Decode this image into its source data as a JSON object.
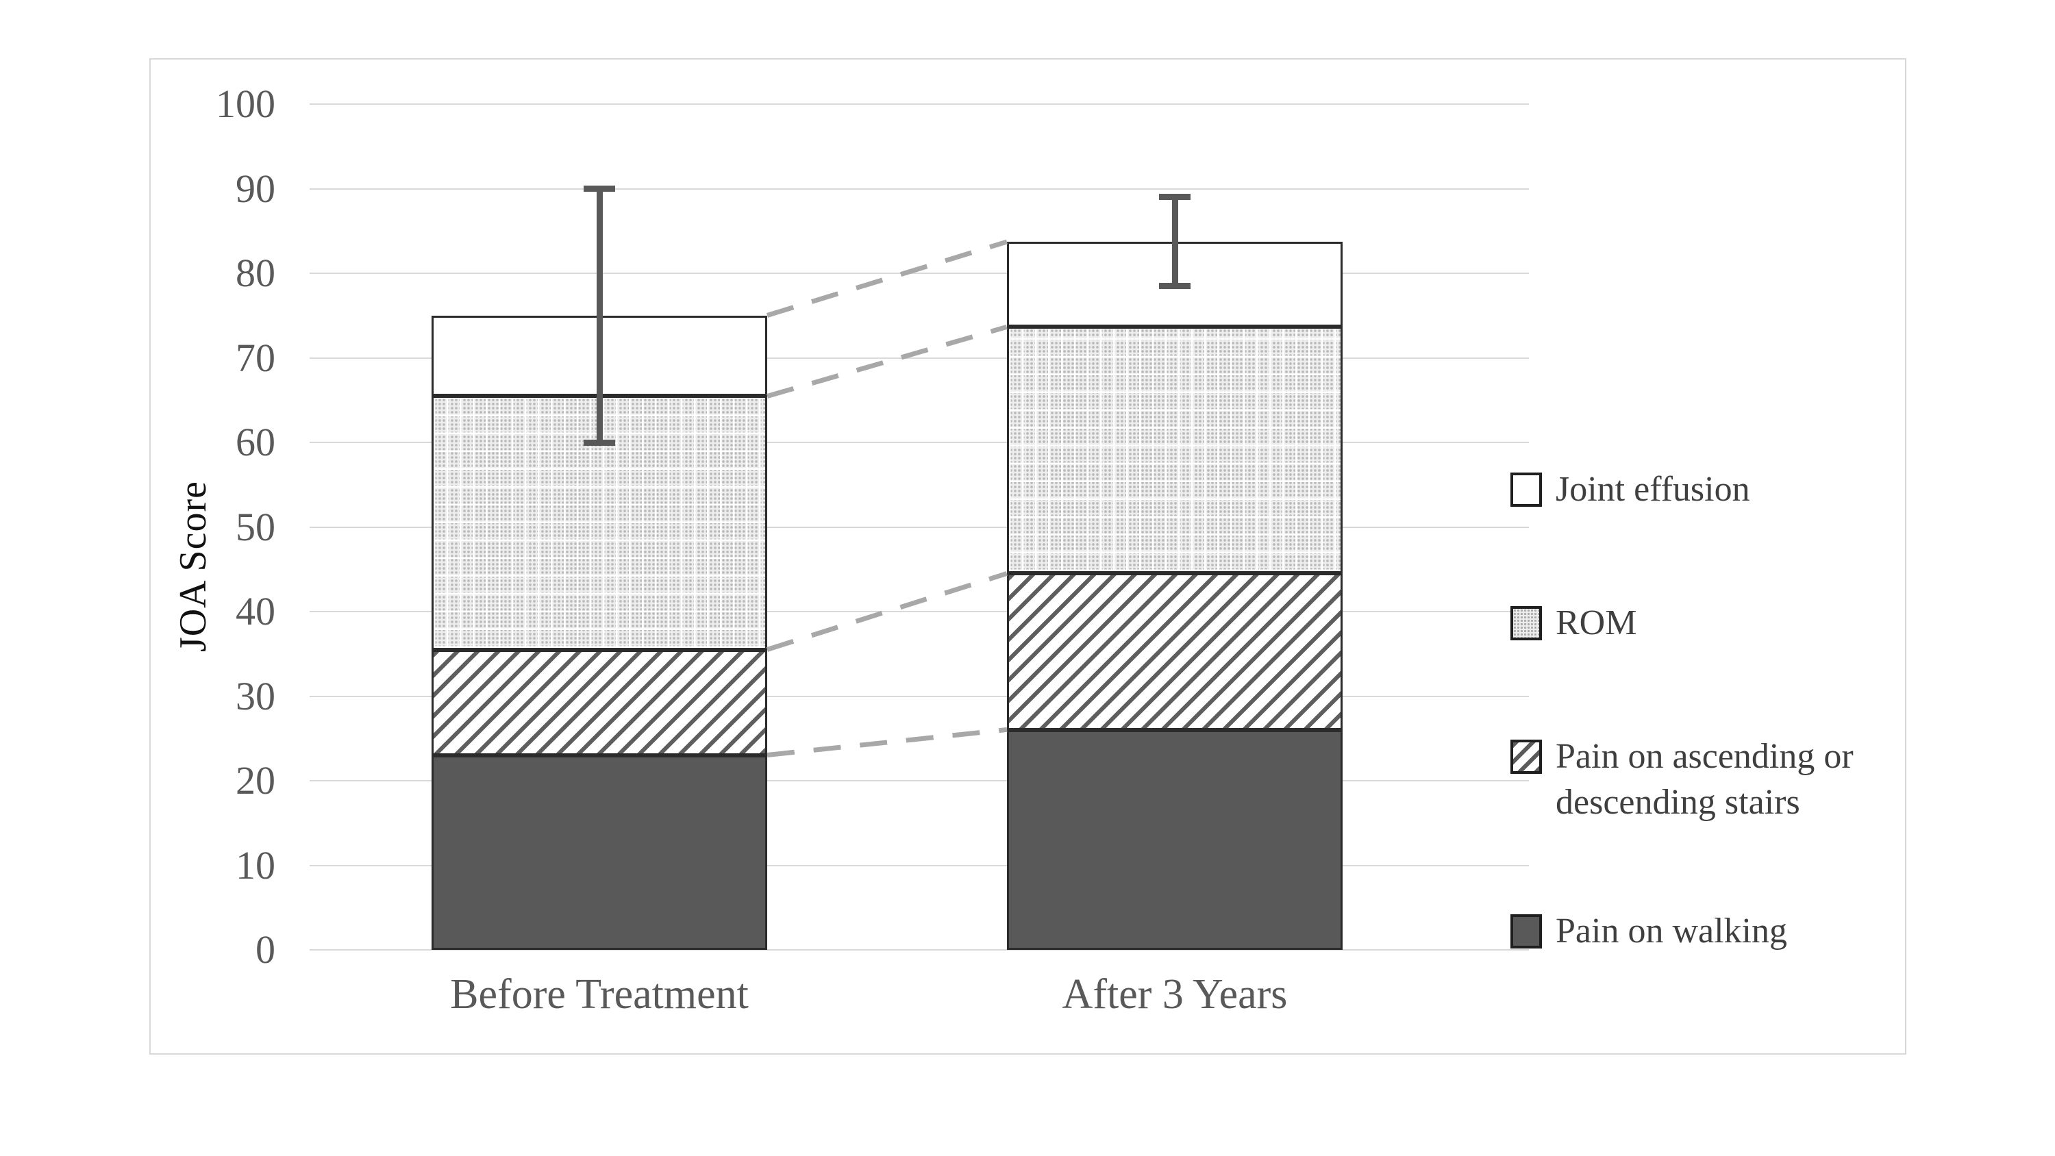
{
  "chart_data": {
    "type": "stacked-bar",
    "title": "",
    "ylabel": "JOA Score",
    "xlabel": "",
    "ylim": [
      0,
      100
    ],
    "ytick_values": [
      0,
      10,
      20,
      30,
      40,
      50,
      60,
      70,
      80,
      90,
      100
    ],
    "yticks": [
      "0",
      "10",
      "20",
      "30",
      "40",
      "50",
      "60",
      "70",
      "80",
      "90",
      "100"
    ],
    "categories": [
      "Before Treatment",
      "After 3 Years"
    ],
    "series": [
      {
        "name": "Pain on walking",
        "pattern": "solid-dark",
        "values": [
          23,
          26
        ]
      },
      {
        "name": "Pain on ascending or descending stairs",
        "pattern": "diagonal-hatch",
        "values": [
          12.5,
          18.5
        ]
      },
      {
        "name": "ROM",
        "pattern": "dot-grid",
        "values": [
          30,
          29.2
        ]
      },
      {
        "name": "Joint effusion",
        "pattern": "plain-white",
        "values": [
          9.5,
          10
        ]
      }
    ],
    "stack_totals": [
      75,
      83.7
    ],
    "stack_boundaries": [
      [
        23,
        35.5,
        65.5,
        75
      ],
      [
        26,
        44.5,
        73.7,
        83.7
      ]
    ],
    "error_bars": [
      {
        "high": 90,
        "low": 60
      },
      {
        "high": 89,
        "low": 78.5
      }
    ],
    "connector_levels": [
      [
        23,
        26
      ],
      [
        35.5,
        44.5
      ],
      [
        65.5,
        73.7
      ],
      [
        75,
        83.7
      ]
    ],
    "legend_position": "right",
    "grid": "horizontal",
    "legend": [
      {
        "label": "Joint effusion",
        "pattern": "plain-white"
      },
      {
        "label": "ROM",
        "pattern": "dot-grid"
      },
      {
        "label": "Pain on ascending or descending stairs",
        "pattern": "diagonal-hatch"
      },
      {
        "label": "Pain on walking",
        "pattern": "solid-dark"
      }
    ],
    "colors": {
      "bar_dark": "#595959",
      "segment_border": "#2b2b2b",
      "gridline": "#d9d9d9",
      "axis_text": "#595959",
      "legend_text": "#3f3f3f",
      "error_bar": "#595959",
      "connector_dash": "#a8a8a8",
      "frame_border": "#d9d9d9"
    }
  }
}
